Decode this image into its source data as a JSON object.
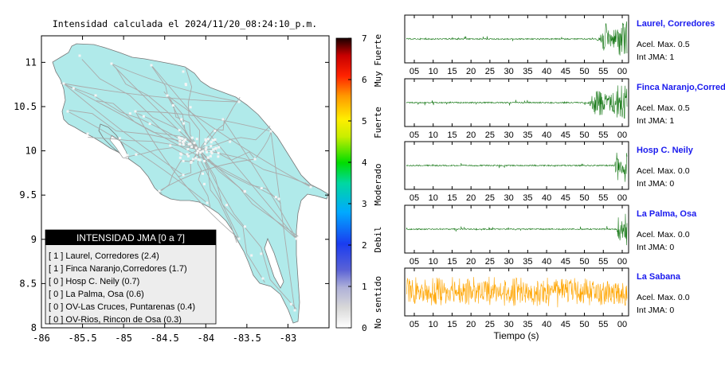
{
  "map": {
    "title": "Intensidad calculada el 2024/11/20_08:24:10_p.m.",
    "y_ticks": [
      "11",
      "10.5",
      "10",
      "9.5",
      "9",
      "8.5",
      "8"
    ],
    "x_ticks": [
      "-86",
      "-85.5",
      "-85",
      "-84.5",
      "-84",
      "-83.5",
      "-83"
    ],
    "land_color": "#b0eaea",
    "road_color": "#aaaaaa",
    "legend": {
      "title": "INTENSIDAD JMA [0 a 7]",
      "rows": [
        "[ 1 ]  Laurel, Corredores (2.4)",
        "[ 1 ]  Finca Naranjo,Corredores (1.7)",
        "[ 0 ]  Hosp C. Neily (0.7)",
        "[ 0 ]  La Palma, Osa (0.6)",
        "[ 0 ]  OV-Las Cruces, Puntarenas (0.4)",
        "[ 0 ]  OV-Rios, Rincon de Osa (0.3)"
      ]
    }
  },
  "colorbar": {
    "ticks": [
      "7",
      "6",
      "5",
      "4",
      "3",
      "2",
      "1",
      "0"
    ],
    "labels": [
      "Muy Fuerte",
      "Fuerte",
      "Moderado",
      "Debil",
      "No sentido"
    ]
  },
  "waveforms": {
    "x_ticks": [
      "05",
      "10",
      "15",
      "20",
      "25",
      "30",
      "35",
      "40",
      "45",
      "50",
      "55",
      "00"
    ],
    "xlabel": "Tiempo (s)",
    "stations": [
      {
        "name": "Laurel, Corredores",
        "acel": "Acel. Max. 0.5",
        "jma": "Int JMA: 1",
        "color": "#1a7a1a",
        "onset": 0.86
      },
      {
        "name": "Finca Naranjo,Corredores",
        "acel": "Acel. Max. 0.5",
        "jma": "Int JMA: 1",
        "color": "#1a7a1a",
        "onset": 0.82
      },
      {
        "name": "Hosp C. Neily",
        "acel": "Acel. Max. 0.0",
        "jma": "Int JMA: 0",
        "color": "#1a7a1a",
        "onset": 0.94
      },
      {
        "name": "La Palma, Osa",
        "acel": "Acel. Max. 0.0",
        "jma": "Int JMA: 0",
        "color": "#1a7a1a",
        "onset": 0.95
      },
      {
        "name": "La Sabana",
        "acel": "Acel. Max. 0.0",
        "jma": "Int JMA: 0",
        "color": "#ffa500",
        "onset": 0.0
      }
    ]
  },
  "chart_data": {
    "type": "scatter",
    "title": "Intensidad calculada el 2024/11/20_08:24:10_p.m.",
    "xlabel": "",
    "ylabel": "",
    "xlim": [
      -86,
      -82.5
    ],
    "ylim": [
      8,
      11.3
    ],
    "colorbar_range": [
      0,
      7
    ],
    "stations_jma": [
      {
        "name": "Laurel, Corredores",
        "jma": 1,
        "value": 2.4
      },
      {
        "name": "Finca Naranjo,Corredores",
        "jma": 1,
        "value": 1.7
      },
      {
        "name": "Hosp C. Neily",
        "jma": 0,
        "value": 0.7
      },
      {
        "name": "La Palma, Osa",
        "jma": 0,
        "value": 0.6
      },
      {
        "name": "OV-Las Cruces, Puntarenas",
        "jma": 0,
        "value": 0.4
      },
      {
        "name": "OV-Rios, Rincon de Osa",
        "jma": 0,
        "value": 0.3
      }
    ],
    "waveform_panels": [
      {
        "station": "Laurel, Corredores",
        "acel_max": 0.5,
        "int_jma": 1
      },
      {
        "station": "Finca Naranjo,Corredores",
        "acel_max": 0.5,
        "int_jma": 1
      },
      {
        "station": "Hosp C. Neily",
        "acel_max": 0.0,
        "int_jma": 0
      },
      {
        "station": "La Palma, Osa",
        "acel_max": 0.0,
        "int_jma": 0
      },
      {
        "station": "La Sabana",
        "acel_max": 0.0,
        "int_jma": 0
      }
    ]
  }
}
